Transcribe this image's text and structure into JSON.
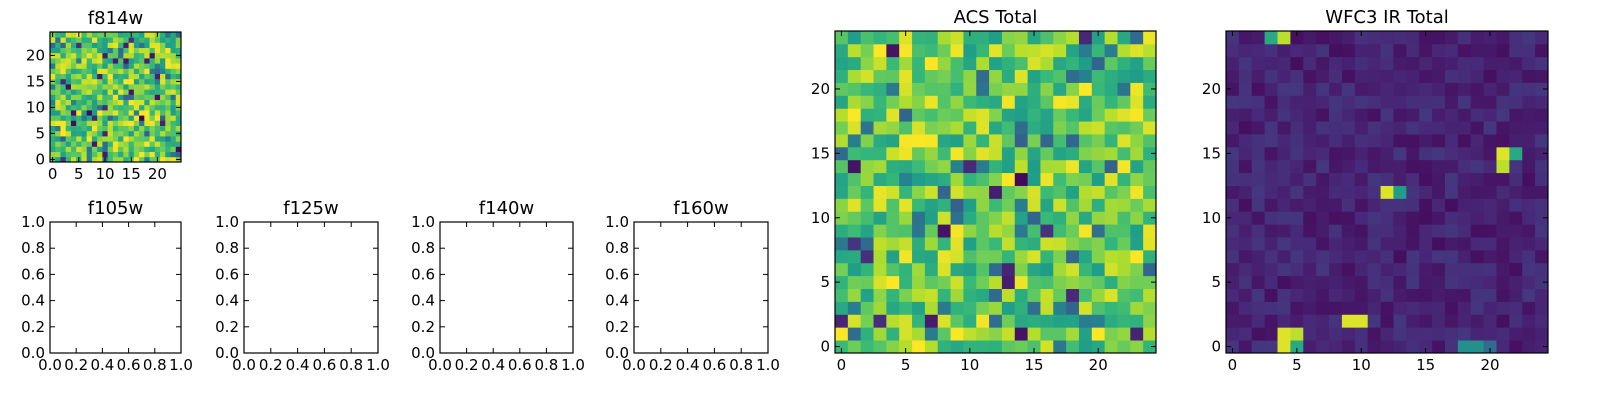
{
  "chart_data": [
    {
      "type": "heatmap",
      "title": "f814w",
      "grid_size": 25,
      "xlim": [
        -0.5,
        24.5
      ],
      "ylim": [
        -0.5,
        24.5
      ],
      "xticks": [
        0,
        5,
        10,
        15,
        20
      ],
      "yticks": [
        0,
        5,
        10,
        15,
        20
      ],
      "colormap": "viridis",
      "distribution": "mostly uniform mid-high intensity (green-yellow) with scattered dark pixels",
      "seed": 814
    },
    {
      "type": "empty",
      "title": "f105w",
      "xlim": [
        0,
        1
      ],
      "ylim": [
        0,
        1
      ],
      "xtick_labels": [
        "0.0",
        "0.2",
        "0.4",
        "0.6",
        "0.8",
        "1.0"
      ],
      "ytick_labels": [
        "0.0",
        "0.2",
        "0.4",
        "0.6",
        "0.8",
        "1.0"
      ]
    },
    {
      "type": "empty",
      "title": "f125w",
      "xlim": [
        0,
        1
      ],
      "ylim": [
        0,
        1
      ],
      "xtick_labels": [
        "0.0",
        "0.2",
        "0.4",
        "0.6",
        "0.8",
        "1.0"
      ],
      "ytick_labels": [
        "0.0",
        "0.2",
        "0.4",
        "0.6",
        "0.8",
        "1.0"
      ]
    },
    {
      "type": "empty",
      "title": "f140w",
      "xlim": [
        0,
        1
      ],
      "ylim": [
        0,
        1
      ],
      "xtick_labels": [
        "0.0",
        "0.2",
        "0.4",
        "0.6",
        "0.8",
        "1.0"
      ],
      "ytick_labels": [
        "0.0",
        "0.2",
        "0.4",
        "0.6",
        "0.8",
        "1.0"
      ]
    },
    {
      "type": "empty",
      "title": "f160w",
      "xlim": [
        0,
        1
      ],
      "ylim": [
        0,
        1
      ],
      "xtick_labels": [
        "0.0",
        "0.2",
        "0.4",
        "0.6",
        "0.8",
        "1.0"
      ],
      "ytick_labels": [
        "0.0",
        "0.2",
        "0.4",
        "0.6",
        "0.8",
        "1.0"
      ]
    },
    {
      "type": "heatmap",
      "title": "ACS Total",
      "grid_size": 25,
      "xlim": [
        -0.5,
        24.5
      ],
      "ylim": [
        -0.5,
        24.5
      ],
      "xticks": [
        0,
        5,
        10,
        15,
        20
      ],
      "yticks": [
        0,
        5,
        10,
        15,
        20
      ],
      "colormap": "viridis",
      "distribution": "mostly uniform mid-high intensity (green-yellow) with scattered dark pixels",
      "seed": 4242
    },
    {
      "type": "heatmap",
      "title": "WFC3 IR Total",
      "grid_size": 25,
      "xlim": [
        -0.5,
        24.5
      ],
      "ylim": [
        -0.5,
        24.5
      ],
      "xticks": [
        0,
        5,
        10,
        15,
        20
      ],
      "yticks": [
        0,
        5,
        10,
        15,
        20
      ],
      "colormap": "viridis",
      "distribution": "low background with a few bright sources",
      "seed": 160,
      "bright_pixels": [
        {
          "x": 4,
          "y": 24,
          "v": 0.9
        },
        {
          "x": 3,
          "y": 24,
          "v": 0.6
        },
        {
          "x": 21,
          "y": 15,
          "v": 0.95
        },
        {
          "x": 21,
          "y": 14,
          "v": 0.9
        },
        {
          "x": 22,
          "y": 15,
          "v": 0.6
        },
        {
          "x": 12,
          "y": 12,
          "v": 0.95
        },
        {
          "x": 13,
          "y": 12,
          "v": 0.55
        },
        {
          "x": 4,
          "y": 1,
          "v": 0.95
        },
        {
          "x": 5,
          "y": 1,
          "v": 0.9
        },
        {
          "x": 4,
          "y": 0,
          "v": 0.95
        },
        {
          "x": 5,
          "y": 0,
          "v": 0.6
        },
        {
          "x": 9,
          "y": 2,
          "v": 0.95
        },
        {
          "x": 10,
          "y": 2,
          "v": 0.95
        },
        {
          "x": 18,
          "y": 0,
          "v": 0.5
        },
        {
          "x": 19,
          "y": 0,
          "v": 0.5
        },
        {
          "x": 20,
          "y": 0,
          "v": 0.35
        }
      ]
    }
  ]
}
